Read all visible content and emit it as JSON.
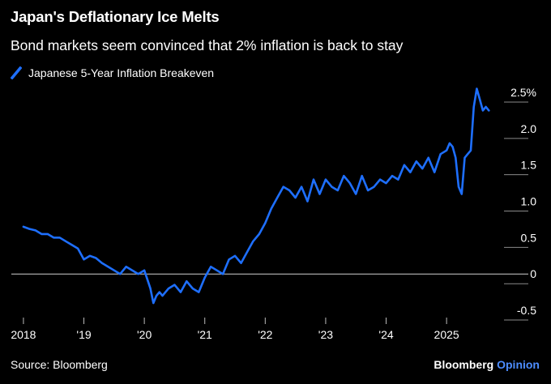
{
  "chart_data": {
    "type": "line",
    "title": "Japan's Deflationary Ice Melts",
    "subtitle": "Bond markets seem convinced that 2% inflation is back to stay",
    "source": "Source: Bloomberg",
    "brand": {
      "name": "Bloomberg",
      "suffix": "Opinion"
    },
    "series": [
      {
        "name": "Japanese 5-Year Inflation Breakeven",
        "color": "#1e6fff",
        "x": [
          2018.0,
          2018.1,
          2018.2,
          2018.3,
          2018.4,
          2018.5,
          2018.6,
          2018.7,
          2018.8,
          2018.9,
          2019.0,
          2019.1,
          2019.2,
          2019.3,
          2019.4,
          2019.5,
          2019.6,
          2019.7,
          2019.8,
          2019.9,
          2020.0,
          2020.1,
          2020.15,
          2020.2,
          2020.25,
          2020.3,
          2020.4,
          2020.5,
          2020.6,
          2020.7,
          2020.8,
          2020.9,
          2021.0,
          2021.1,
          2021.2,
          2021.3,
          2021.4,
          2021.5,
          2021.6,
          2021.7,
          2021.8,
          2021.9,
          2022.0,
          2022.1,
          2022.2,
          2022.3,
          2022.4,
          2022.5,
          2022.6,
          2022.7,
          2022.8,
          2022.9,
          2023.0,
          2023.1,
          2023.2,
          2023.3,
          2023.4,
          2023.5,
          2023.6,
          2023.7,
          2023.8,
          2023.9,
          2024.0,
          2024.1,
          2024.2,
          2024.3,
          2024.4,
          2024.5,
          2024.6,
          2024.7,
          2024.8,
          2024.9,
          2025.0,
          2025.05,
          2025.1,
          2025.15,
          2025.2,
          2025.25,
          2025.3,
          2025.35,
          2025.4,
          2025.45,
          2025.5,
          2025.55,
          2025.6,
          2025.65,
          2025.7
        ],
        "values": [
          0.65,
          0.62,
          0.6,
          0.55,
          0.55,
          0.5,
          0.5,
          0.45,
          0.4,
          0.35,
          0.2,
          0.25,
          0.22,
          0.15,
          0.1,
          0.05,
          0.0,
          0.1,
          0.05,
          0.0,
          0.05,
          -0.2,
          -0.4,
          -0.3,
          -0.25,
          -0.3,
          -0.2,
          -0.15,
          -0.25,
          -0.1,
          -0.2,
          -0.25,
          -0.05,
          0.1,
          0.05,
          0.0,
          0.2,
          0.25,
          0.15,
          0.3,
          0.45,
          0.55,
          0.7,
          0.9,
          1.05,
          1.2,
          1.15,
          1.05,
          1.2,
          1.0,
          1.3,
          1.1,
          1.3,
          1.2,
          1.15,
          1.35,
          1.25,
          1.1,
          1.35,
          1.15,
          1.2,
          1.3,
          1.25,
          1.35,
          1.3,
          1.5,
          1.4,
          1.55,
          1.45,
          1.6,
          1.4,
          1.65,
          1.7,
          1.8,
          1.75,
          1.6,
          1.2,
          1.1,
          1.6,
          1.65,
          1.7,
          2.3,
          2.55,
          2.4,
          2.25,
          2.3,
          2.25
        ]
      }
    ],
    "x_ticks": [
      {
        "x": 2018,
        "label": "2018"
      },
      {
        "x": 2019,
        "label": "'19"
      },
      {
        "x": 2020,
        "label": "'20"
      },
      {
        "x": 2021,
        "label": "'21"
      },
      {
        "x": 2022,
        "label": "'22"
      },
      {
        "x": 2023,
        "label": "'23"
      },
      {
        "x": 2024,
        "label": "'24"
      },
      {
        "x": 2025,
        "label": "2025"
      }
    ],
    "y_ticks": [
      {
        "y": 2.5,
        "label": "2.5%"
      },
      {
        "y": 2.0,
        "label": "2.0"
      },
      {
        "y": 1.5,
        "label": "1.5"
      },
      {
        "y": 1.0,
        "label": "1.0"
      },
      {
        "y": 0.5,
        "label": "0.5"
      },
      {
        "y": 0,
        "label": "0"
      },
      {
        "y": -0.5,
        "label": "-0.5"
      }
    ],
    "xlim": [
      2017.8,
      2025.95
    ],
    "ylim": [
      -0.6,
      2.6
    ],
    "grid": false,
    "legend_position": "top-left"
  }
}
